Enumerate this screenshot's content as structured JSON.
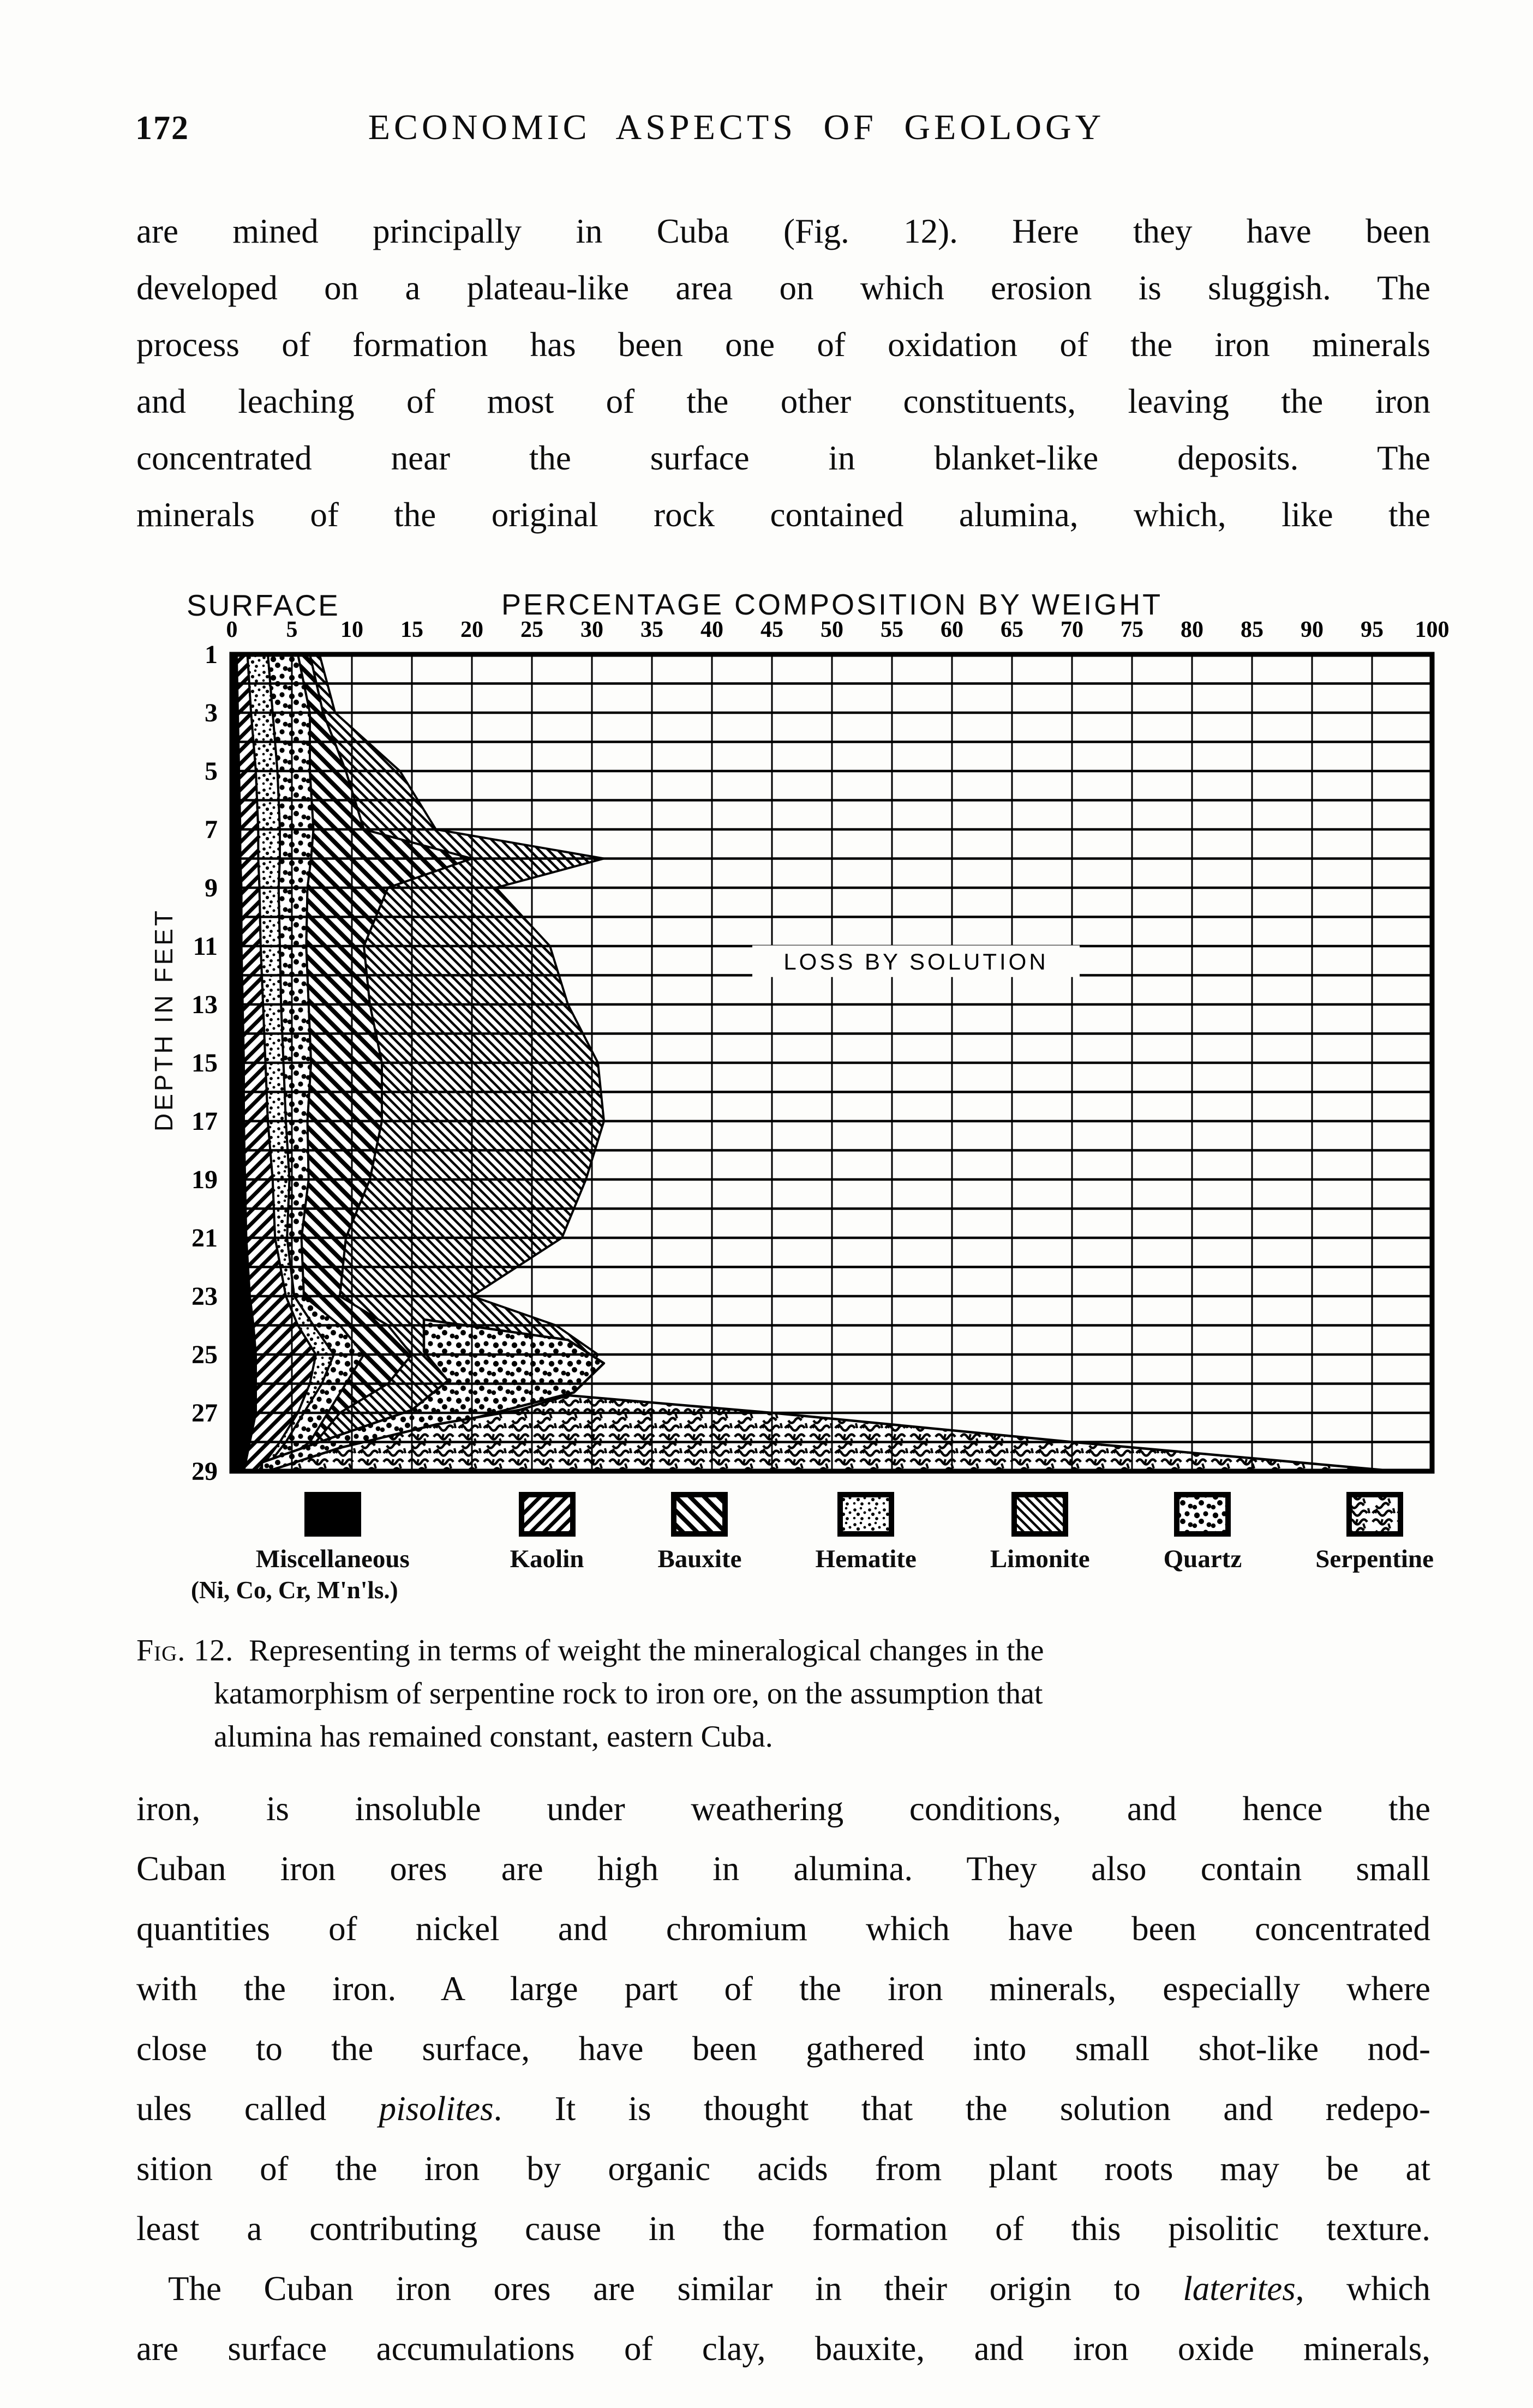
{
  "page": {
    "number": "172",
    "running_title": "ECONOMIC ASPECTS OF GEOLOGY",
    "paragraph1_lines": [
      "are mined principally in Cuba (Fig. 12).  Here they have been",
      "developed on a plateau-like area on which erosion is sluggish.  The",
      "process of formation has been one of oxidation of the iron minerals",
      "and leaching of most of the other constituents, leaving the iron",
      "concentrated near the surface in blanket-like deposits.  The",
      "minerals of the original rock contained alumina, which, like the"
    ],
    "figure": {
      "surface_label": "SURFACE",
      "axis_title": "PERCENTAGE COMPOSITION BY WEIGHT",
      "y_axis_label": "DEPTH IN FEET",
      "annotation": "LOSS BY SOLUTION",
      "legend": [
        {
          "label": "Miscellaneous",
          "sublabel": "(Ni, Co, Cr, M'n'ls.)",
          "pattern": "miscellaneous"
        },
        {
          "label": "Kaolin",
          "pattern": "kaolin"
        },
        {
          "label": "Bauxite",
          "pattern": "bauxite"
        },
        {
          "label": "Hematite",
          "pattern": "hematite"
        },
        {
          "label": "Limonite",
          "pattern": "limonite"
        },
        {
          "label": "Quartz",
          "pattern": "quartz"
        },
        {
          "label": "Serpentine",
          "pattern": "serpentine"
        }
      ]
    },
    "caption": {
      "fig_label": "Fig. 12.",
      "line1_rest": "Representing in terms of weight the mineralogical changes in the",
      "line2": "katamorphism of serpentine rock to iron ore, on the assumption that",
      "line3": "alumina has remained constant, eastern Cuba."
    },
    "paragraph2_lines": [
      "iron, is insoluble under weathering conditions, and hence the",
      "Cuban iron ores are high in alumina.  They also contain small",
      "quantities of nickel and chromium which have been concentrated",
      "with the iron.  A large part of the iron minerals, especially where",
      "close to the surface, have been gathered into small shot-like nod-",
      "ules called pisolites.  It is thought that the solution and redepo-",
      "sition of the iron by organic acids from plant roots may be at",
      "least a contributing cause in the formation of this pisolitic texture."
    ],
    "paragraph3_lines": [
      "The Cuban iron ores are similar in their origin to laterites, which",
      "are surface accumulations of clay, bauxite, and iron oxide minerals,"
    ],
    "italic_words": [
      "pisolites",
      "laterites"
    ]
  },
  "chart_data": {
    "type": "area",
    "title": "PERCENTAGE COMPOSITION BY WEIGHT",
    "xlabel": "PERCENTAGE COMPOSITION BY WEIGHT",
    "ylabel": "DEPTH IN FEET",
    "xlim": [
      0,
      100
    ],
    "ylim": [
      1,
      29
    ],
    "grid": "on",
    "annotation": "LOSS BY SOLUTION",
    "x_ticks": [
      0,
      5,
      10,
      15,
      20,
      25,
      30,
      35,
      40,
      45,
      50,
      55,
      60,
      65,
      70,
      75,
      80,
      85,
      90,
      95,
      100
    ],
    "depth_ticks": [
      1,
      3,
      5,
      7,
      9,
      11,
      13,
      15,
      17,
      19,
      21,
      23,
      25,
      27,
      29
    ],
    "depths": [
      1,
      3,
      5,
      7,
      8,
      9,
      11,
      13,
      15,
      17,
      19,
      21,
      23,
      24,
      25,
      26,
      27,
      28,
      29
    ],
    "series_note": "cumulative right-hand boundary of each mineral band, percent by weight; remaining white area = loss by solution",
    "cumulative_pct": {
      "miscellaneous": [
        0.4,
        0.5,
        0.6,
        0.7,
        0.7,
        0.8,
        0.8,
        0.9,
        1.0,
        1.0,
        1.1,
        1.2,
        1.5,
        1.8,
        2.0,
        2.0,
        2.0,
        1.5,
        1.0
      ],
      "kaolin": [
        1.3,
        1.6,
        2.0,
        2.2,
        2.2,
        2.3,
        2.4,
        2.6,
        2.8,
        3.0,
        3.4,
        3.6,
        4.5,
        5.5,
        7.0,
        6.5,
        5.5,
        4.0,
        2.2
      ],
      "hematite": [
        3.0,
        3.4,
        3.8,
        4.0,
        4.0,
        3.9,
        4.0,
        4.1,
        4.3,
        4.5,
        4.8,
        4.6,
        5.2,
        6.8,
        8.5,
        7.5,
        6.0,
        4.5,
        2.6
      ],
      "quartz": [
        5.5,
        6.5,
        6.5,
        6.8,
        6.6,
        6.3,
        6.2,
        6.4,
        6.6,
        6.3,
        6.4,
        5.8,
        6.0,
        9.0,
        11.0,
        9.5,
        8.0,
        6.5,
        3.0
      ],
      "bauxite": [
        6.5,
        7.6,
        9.5,
        11.0,
        20.0,
        13.0,
        11.0,
        11.5,
        12.5,
        12.5,
        11.5,
        9.5,
        9.0,
        13.0,
        15.0,
        13.0,
        9.0,
        7.0,
        3.2
      ],
      "limonite": [
        7.3,
        8.6,
        14.0,
        17.0,
        31.0,
        22.0,
        26.5,
        28.0,
        30.5,
        31.0,
        29.5,
        27.5,
        20.0,
        27.0,
        30.5,
        29.0,
        20.0,
        10.0,
        3.4
      ]
    },
    "overlays": {
      "quartz_lens": [
        [
          16,
          23.8
        ],
        [
          28,
          24.5
        ],
        [
          31,
          25.3
        ],
        [
          28.5,
          26.3
        ],
        [
          20,
          27.2
        ],
        [
          10,
          28.1
        ],
        [
          4,
          29
        ],
        [
          2.5,
          29
        ],
        [
          2.5,
          28.7
        ],
        [
          8,
          27.9
        ],
        [
          15,
          26.9
        ],
        [
          18,
          25.9
        ],
        [
          16,
          24.9
        ]
      ],
      "serpentine_wedge": [
        [
          28,
          26.4
        ],
        [
          45,
          27
        ],
        [
          70,
          28
        ],
        [
          97,
          29
        ],
        [
          3,
          29
        ],
        [
          9,
          28.2
        ],
        [
          17,
          27.4
        ],
        [
          24,
          26.9
        ]
      ]
    },
    "annotation_pos": {
      "x_pct": 57,
      "depth": 11.5
    }
  }
}
